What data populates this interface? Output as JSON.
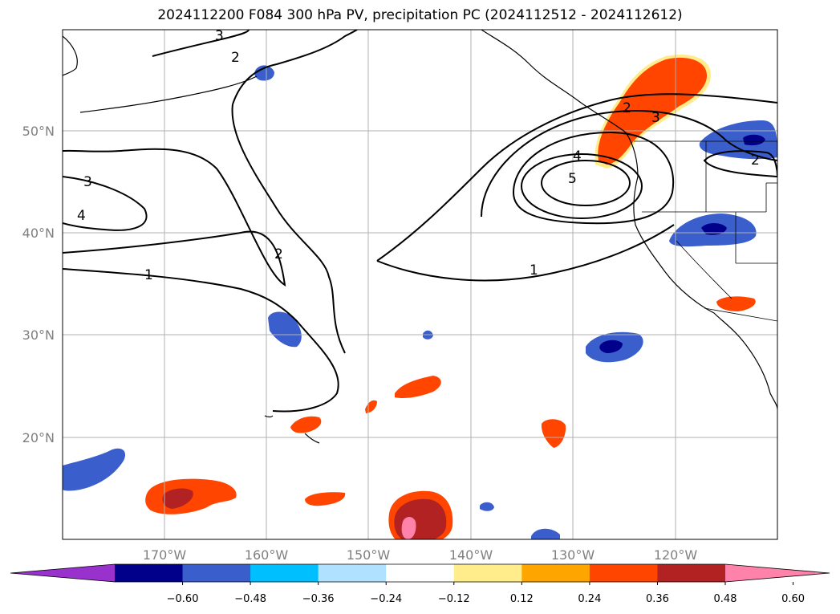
{
  "title": "2024112200 F084 300 hPa PV, precipitation PC (2024112512 - 2024112612)",
  "map": {
    "lon_ticks": [
      "170°W",
      "160°W",
      "150°W",
      "140°W",
      "130°W",
      "120°W"
    ],
    "lat_ticks": [
      "50°N",
      "40°N",
      "30°N",
      "20°N"
    ],
    "lon_range": [
      -180,
      -110
    ],
    "lat_range": [
      10,
      60
    ],
    "gridlines": true
  },
  "contours": {
    "field": "300 hPa PV",
    "labels": [
      "3",
      "2",
      "3",
      "4",
      "2",
      "1",
      "1",
      "2",
      "3",
      "4",
      "5",
      "2"
    ]
  },
  "colorbar": {
    "ticks": [
      "−0.60",
      "−0.48",
      "−0.36",
      "−0.24",
      "−0.12",
      "0.12",
      "0.24",
      "0.36",
      "0.48",
      "0.60"
    ],
    "colors": [
      "#9932cc",
      "#00008b",
      "#3a5fcd",
      "#00bfff",
      "#b0e2ff",
      "#ffffff",
      "#ffec8b",
      "#ffa500",
      "#ff4500",
      "#b22222",
      "#ff82ab"
    ],
    "orientation": "horizontal",
    "extend": "both"
  }
}
